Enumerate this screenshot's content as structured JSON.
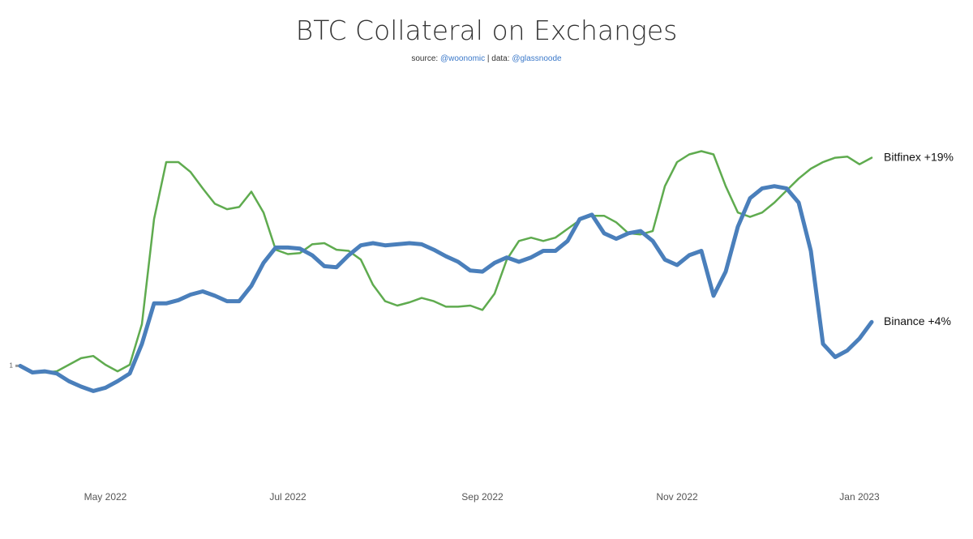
{
  "chart_data": {
    "type": "line",
    "title": "BTC Collateral on Exchanges",
    "subtitle": {
      "source_label": "source:",
      "source": "@woonomic",
      "data_label": "| data:",
      "data_source": "@glassnoode"
    },
    "categories": [
      null,
      null,
      null,
      null,
      null,
      null,
      null,
      "May 2022",
      null,
      null,
      null,
      null,
      null,
      null,
      null,
      null,
      null,
      null,
      null,
      null,
      null,
      null,
      "Jul 2022",
      null,
      null,
      null,
      null,
      null,
      null,
      null,
      null,
      null,
      null,
      null,
      null,
      null,
      null,
      null,
      "Sep 2022",
      null,
      null,
      null,
      null,
      null,
      null,
      null,
      null,
      null,
      null,
      null,
      null,
      null,
      null,
      null,
      "Nov 2022",
      null,
      null,
      null,
      null,
      null,
      null,
      null,
      null,
      null,
      null,
      null,
      null,
      null,
      null,
      "Jan 2023",
      null
    ],
    "ylim": [
      0.89,
      1.26
    ],
    "yticks": [
      1
    ],
    "grid": false,
    "series": [
      {
        "name": "Bitfinex +19%",
        "color": "#5fab4f",
        "width": 2.5,
        "values": [
          1.0,
          0.994,
          0.994,
          0.995,
          1.001,
          1.007,
          1.009,
          1.001,
          0.995,
          1.001,
          1.038,
          1.134,
          1.186,
          1.186,
          1.177,
          1.162,
          1.148,
          1.143,
          1.145,
          1.159,
          1.14,
          1.106,
          1.102,
          1.103,
          1.111,
          1.112,
          1.106,
          1.105,
          1.097,
          1.074,
          1.059,
          1.055,
          1.058,
          1.062,
          1.059,
          1.054,
          1.054,
          1.055,
          1.051,
          1.066,
          1.097,
          1.114,
          1.117,
          1.114,
          1.117,
          1.125,
          1.133,
          1.137,
          1.137,
          1.131,
          1.121,
          1.12,
          1.123,
          1.164,
          1.186,
          1.193,
          1.196,
          1.193,
          1.164,
          1.14,
          1.136,
          1.14,
          1.149,
          1.16,
          1.171,
          1.18,
          1.186,
          1.19,
          1.191,
          1.184,
          1.19
        ]
      },
      {
        "name": "Binance +4%",
        "color": "#4a7fbb",
        "width": 5,
        "values": [
          1.0,
          0.994,
          0.995,
          0.993,
          0.986,
          0.981,
          0.977,
          0.98,
          0.986,
          0.993,
          1.02,
          1.057,
          1.057,
          1.06,
          1.065,
          1.068,
          1.064,
          1.059,
          1.059,
          1.073,
          1.094,
          1.108,
          1.108,
          1.107,
          1.101,
          1.091,
          1.09,
          1.101,
          1.11,
          1.112,
          1.11,
          1.111,
          1.112,
          1.111,
          1.106,
          1.1,
          1.095,
          1.087,
          1.086,
          1.094,
          1.099,
          1.095,
          1.099,
          1.105,
          1.105,
          1.114,
          1.134,
          1.138,
          1.121,
          1.116,
          1.121,
          1.123,
          1.114,
          1.097,
          1.092,
          1.101,
          1.105,
          1.064,
          1.086,
          1.127,
          1.153,
          1.162,
          1.164,
          1.162,
          1.149,
          1.105,
          1.02,
          1.008,
          1.014,
          1.025,
          1.04
        ]
      }
    ]
  }
}
